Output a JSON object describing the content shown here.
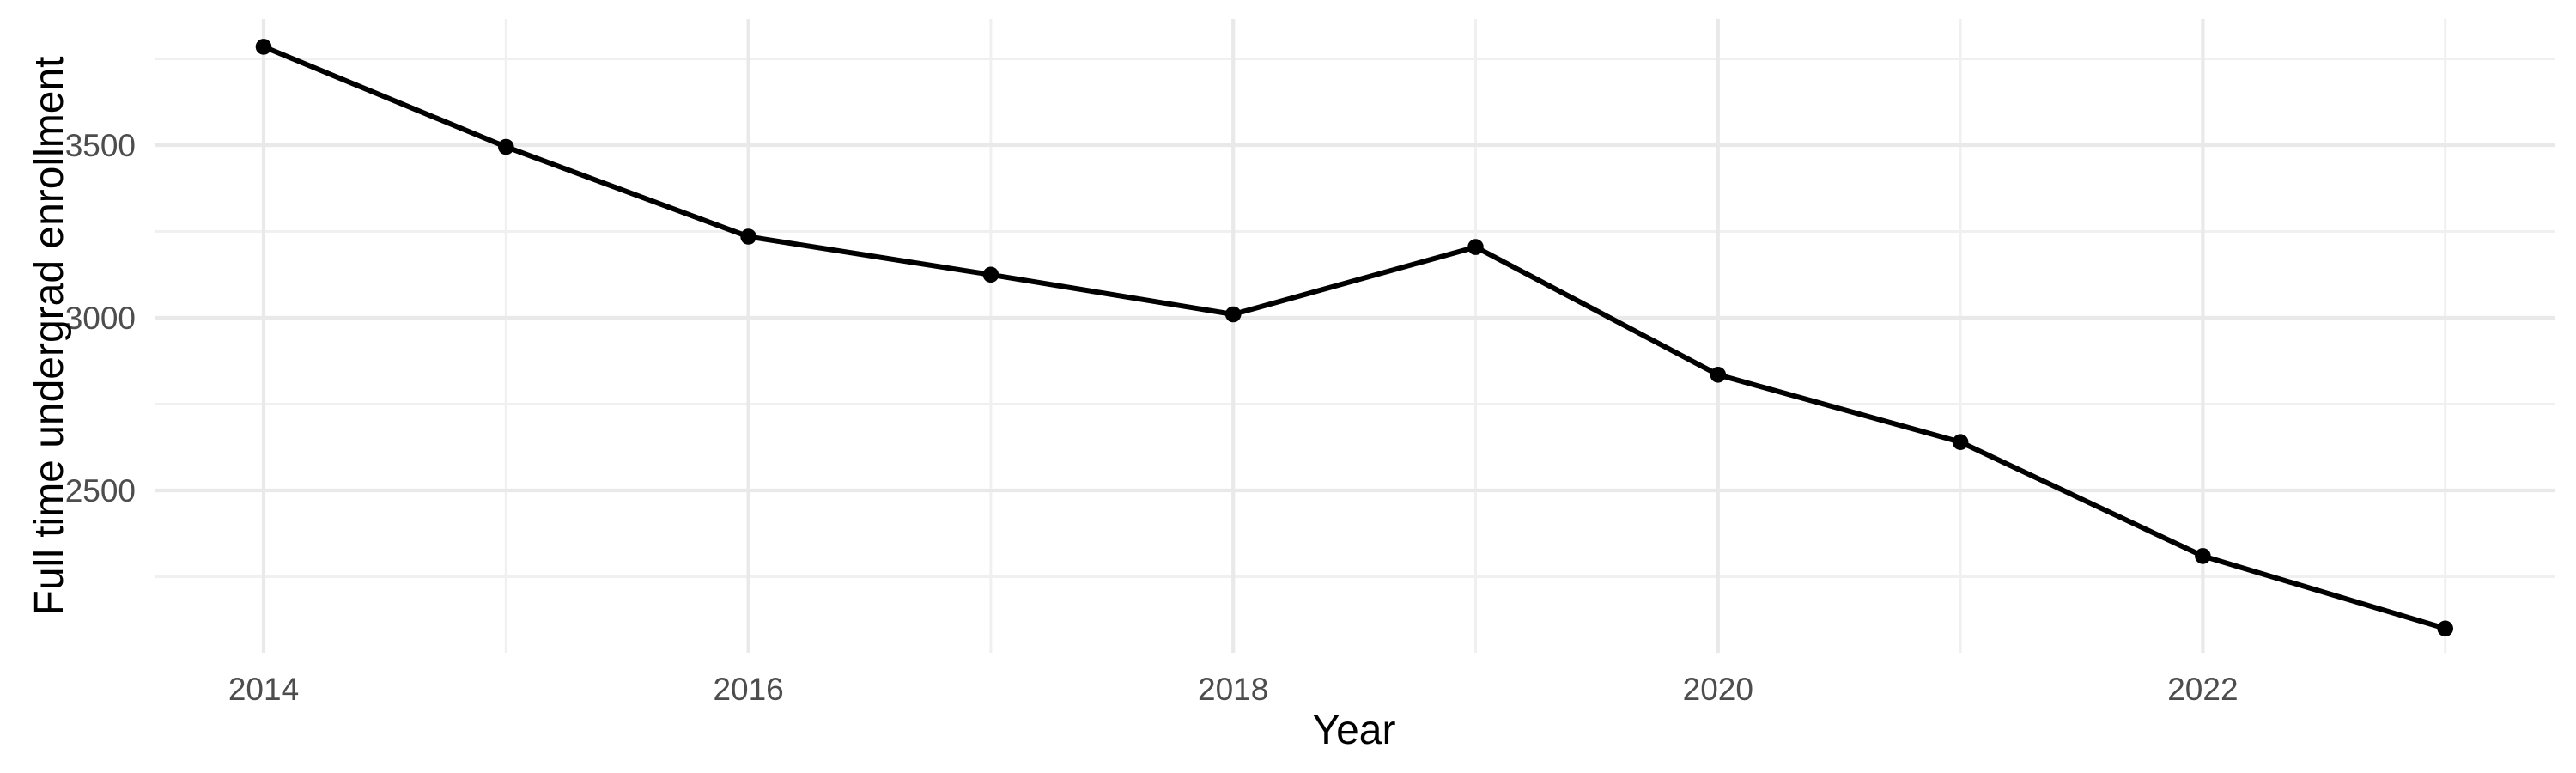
{
  "chart_data": {
    "type": "line",
    "title": "",
    "xlabel": "Year",
    "ylabel": "Full time undergrad enrollment",
    "x": [
      2014,
      2015,
      2016,
      2017,
      2018,
      2019,
      2020,
      2021,
      2022,
      2023
    ],
    "series": [
      {
        "name": "Full time undergrad enrollment",
        "values": [
          3785,
          3495,
          3235,
          3125,
          3010,
          3205,
          2835,
          2640,
          2310,
          2100
        ]
      }
    ],
    "x_tick_labels": [
      "2014",
      "2016",
      "2018",
      "2020",
      "2022"
    ],
    "x_major_gridlines": [
      2014,
      2016,
      2018,
      2020,
      2022
    ],
    "x_minor_gridlines": [
      2015,
      2017,
      2019,
      2021,
      2023
    ],
    "y_tick_labels": [
      "3500",
      "3000",
      "2500"
    ],
    "y_major_gridlines": [
      3500,
      3000,
      2500
    ],
    "y_minor_gridlines": [
      3750,
      3250,
      2750,
      2250
    ],
    "xlim": [
      2013.55,
      2023.45
    ],
    "ylim": [
      2050,
      3866
    ],
    "grid": "on",
    "legend": "none",
    "colors": {
      "background": "#FFFFFF",
      "line": "#000000",
      "point": "#000000",
      "grid_major": "#E9E9E9",
      "grid_minor": "#F0F0F0",
      "tick_text": "#4D4D4D",
      "axis_title_text": "#000000"
    }
  }
}
